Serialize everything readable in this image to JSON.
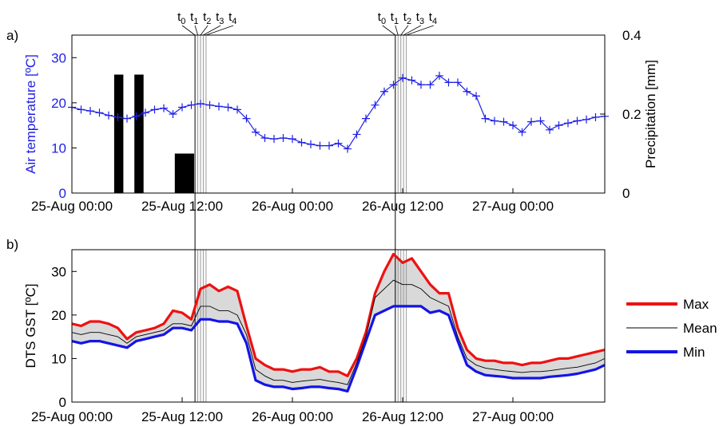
{
  "colors": {
    "temperature": "#1f1fe6",
    "max": "#ee1111",
    "min": "#1414e6",
    "mean": "#000000",
    "band": "#d9d9d9",
    "bars": "#000000"
  },
  "chart_data": [
    {
      "type": "line",
      "panel_label": "a)",
      "ylabel": "Air temperature [ºC]",
      "y2label": "Precipitation [mm]",
      "xlim_hours": [
        0,
        58
      ],
      "ylim": [
        0,
        35
      ],
      "y2lim": [
        0,
        0.4
      ],
      "x_ticks": [
        {
          "h": 0,
          "label": "25-Aug 00:00"
        },
        {
          "h": 12,
          "label": "25-Aug 12:00"
        },
        {
          "h": 24,
          "label": "26-Aug 00:00"
        },
        {
          "h": 36,
          "label": "26-Aug 12:00"
        },
        {
          "h": 48,
          "label": "27-Aug 00:00"
        }
      ],
      "y_ticks": [
        "0",
        "10",
        "20",
        "30"
      ],
      "y_tick_values": [
        0,
        10,
        20,
        30
      ],
      "y2_ticks": [
        "0",
        "0.2",
        "0.4"
      ],
      "y2_tick_values": [
        0,
        0.2,
        0.4
      ],
      "series": [
        {
          "x_hours": [
            0,
            1,
            2,
            3,
            4,
            5,
            6,
            7,
            8,
            9,
            10,
            11,
            12,
            13,
            14,
            15,
            16,
            17,
            18,
            19,
            20,
            21,
            22,
            23,
            24,
            25,
            26,
            27,
            28,
            29,
            30,
            31,
            32,
            33,
            34,
            35,
            36,
            37,
            38,
            39,
            40,
            41,
            42,
            43,
            44,
            45,
            46,
            47,
            48,
            49,
            50,
            51,
            52,
            53,
            54,
            55,
            56,
            57,
            58
          ],
          "values": [
            19,
            18.5,
            18.2,
            17.8,
            17.2,
            16.8,
            16.5,
            17,
            17.8,
            18.5,
            18.8,
            17.5,
            19,
            19.5,
            19.8,
            19.5,
            19.2,
            19,
            18.5,
            16.5,
            13.5,
            12.2,
            12,
            12.2,
            12,
            11.2,
            10.8,
            10.5,
            10.5,
            11,
            9.8,
            13,
            16.5,
            19.5,
            22.5,
            24,
            25.5,
            25,
            24,
            24,
            26,
            24.5,
            24.5,
            22.5,
            21.5,
            16.5,
            16,
            15.8,
            15,
            13.5,
            15.8,
            16,
            14,
            15,
            15.5,
            16,
            16.3,
            16.8,
            17
          ]
        }
      ],
      "precipitation_bars": [
        {
          "start_h": 4.6,
          "end_h": 5.6,
          "value": 0.3
        },
        {
          "start_h": 6.8,
          "end_h": 7.8,
          "value": 0.3
        },
        {
          "start_h": 11.2,
          "end_h": 13.3,
          "value": 0.1
        }
      ],
      "markers": [
        {
          "h": 13.4,
          "labels": [
            {
              "base": "t",
              "sub": "0"
            },
            {
              "base": "t",
              "sub": "1"
            },
            {
              "base": "t",
              "sub": "2"
            },
            {
              "base": "t",
              "sub": "3"
            },
            {
              "base": "t",
              "sub": "4"
            }
          ]
        },
        {
          "h": 35.2,
          "labels": [
            {
              "base": "t",
              "sub": "0"
            },
            {
              "base": "t",
              "sub": "1"
            },
            {
              "base": "t",
              "sub": "2"
            },
            {
              "base": "t",
              "sub": "3"
            },
            {
              "base": "t",
              "sub": "4"
            }
          ]
        }
      ],
      "marker_offsets_h": [
        0.0,
        0.3,
        0.6,
        0.9,
        1.2
      ]
    },
    {
      "type": "area",
      "panel_label": "b)",
      "ylabel": "DTS GST [ºC]",
      "xlim_hours": [
        0,
        58
      ],
      "ylim": [
        0,
        35
      ],
      "x_ticks": [
        {
          "h": 0,
          "label": "25-Aug 00:00"
        },
        {
          "h": 12,
          "label": "25-Aug 12:00"
        },
        {
          "h": 24,
          "label": "26-Aug 00:00"
        },
        {
          "h": 36,
          "label": "26-Aug 12:00"
        },
        {
          "h": 48,
          "label": "27-Aug 00:00"
        }
      ],
      "y_ticks": [
        "0",
        "10",
        "20",
        "30"
      ],
      "y_tick_values": [
        0,
        10,
        20,
        30
      ],
      "x_hours": [
        0,
        1,
        2,
        3,
        4,
        5,
        6,
        7,
        8,
        9,
        10,
        11,
        12,
        13,
        14,
        15,
        16,
        17,
        18,
        19,
        20,
        21,
        22,
        23,
        24,
        25,
        26,
        27,
        28,
        29,
        30,
        31,
        32,
        33,
        34,
        35,
        36,
        37,
        38,
        39,
        40,
        41,
        42,
        43,
        44,
        45,
        46,
        47,
        48,
        49,
        50,
        51,
        52,
        53,
        54,
        55,
        56,
        57,
        58
      ],
      "series": [
        {
          "name": "Max",
          "values": [
            18,
            17.5,
            18.5,
            18.5,
            18,
            17,
            14.5,
            16,
            16.5,
            17,
            18,
            21,
            20.5,
            19,
            26,
            27,
            25.5,
            26.5,
            25.5,
            17.5,
            10,
            8.5,
            7.5,
            7.5,
            7,
            7.5,
            7.5,
            8,
            7,
            7,
            6,
            10,
            16,
            25,
            30,
            34,
            32,
            33,
            30,
            27,
            25,
            25,
            17,
            12,
            10,
            9.5,
            9.5,
            9,
            9,
            8.5,
            9,
            9,
            9.5,
            10,
            10,
            10.5,
            11,
            11.5,
            12
          ]
        },
        {
          "name": "Mean",
          "values": [
            16,
            15.5,
            16,
            16,
            15.5,
            15,
            13.5,
            15,
            15.5,
            16,
            16.5,
            18,
            18,
            17.5,
            22,
            22,
            21,
            21,
            20,
            15.5,
            7.5,
            6,
            5,
            5,
            4.5,
            4.8,
            5,
            5.2,
            4.8,
            4.5,
            4,
            9,
            15,
            24,
            26,
            28,
            27,
            27,
            26,
            24,
            23,
            22,
            15,
            10,
            8.5,
            7.8,
            7.5,
            7.2,
            7,
            6.8,
            7,
            7,
            7.2,
            7.5,
            7.8,
            8,
            8.5,
            9,
            10
          ]
        },
        {
          "name": "Min",
          "values": [
            14,
            13.5,
            14,
            14,
            13.5,
            13,
            12.5,
            14,
            14.5,
            15,
            15.5,
            17,
            17,
            16.5,
            19,
            19,
            18.5,
            18.5,
            18,
            13.5,
            5,
            4,
            3.5,
            3.5,
            3,
            3.2,
            3.5,
            3.5,
            3.2,
            3,
            2.5,
            8,
            14,
            20,
            21,
            22,
            22,
            22,
            22,
            20.5,
            21,
            20,
            14,
            8.5,
            7,
            6.2,
            6,
            5.8,
            5.5,
            5.5,
            5.5,
            5.5,
            5.8,
            6,
            6.2,
            6.5,
            7,
            7.5,
            8.5
          ]
        }
      ],
      "markers_h": [
        13.4,
        35.2
      ],
      "marker_offsets_h": [
        0.0,
        0.3,
        0.6,
        0.9,
        1.2
      ],
      "legend": [
        {
          "name": "Max"
        },
        {
          "name": "Mean"
        },
        {
          "name": "Min"
        }
      ]
    }
  ]
}
